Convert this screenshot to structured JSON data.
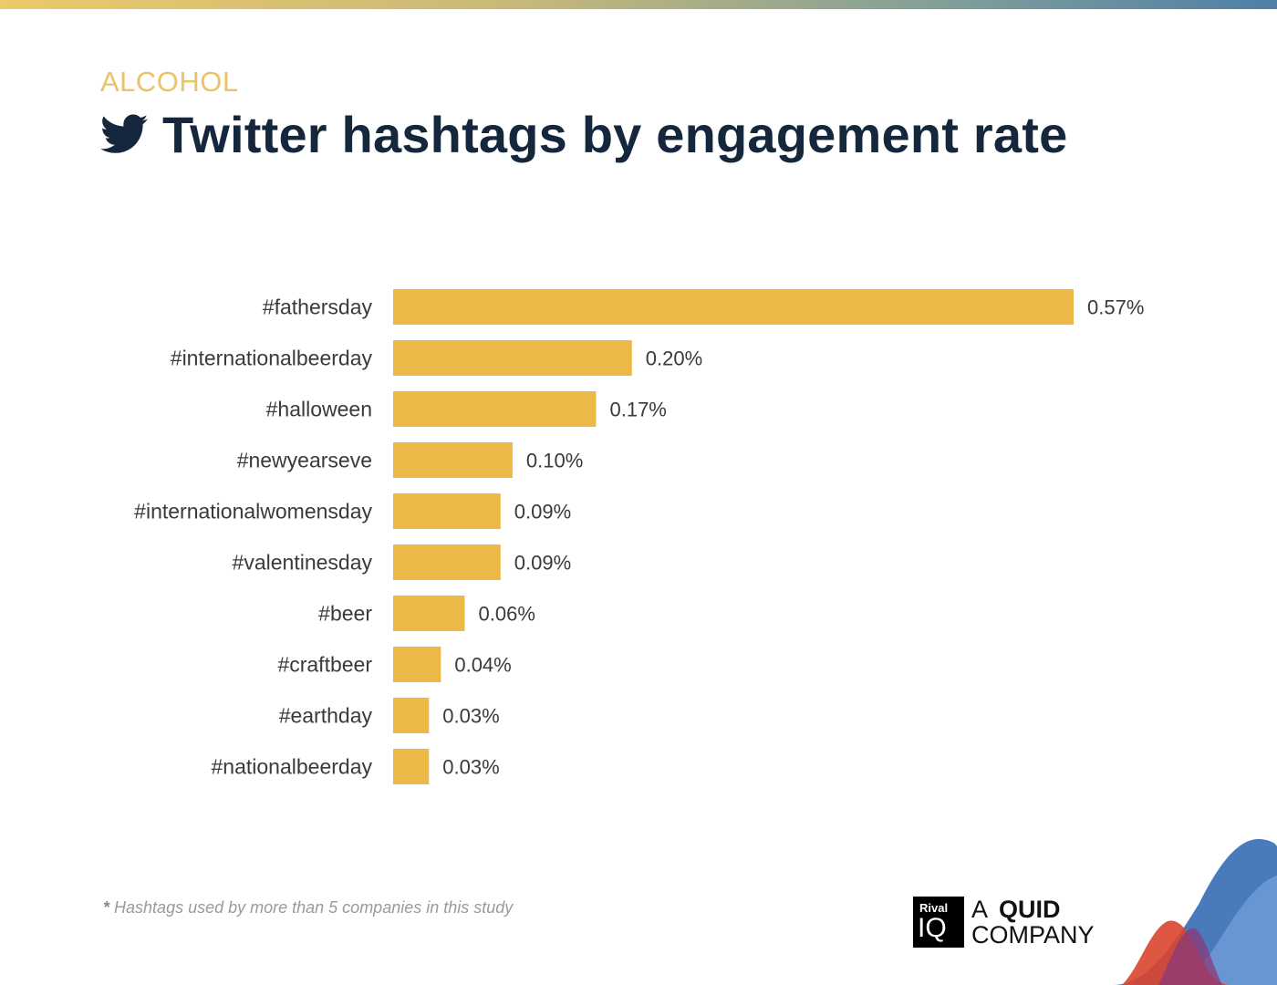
{
  "header": {
    "category": "ALCOHOL",
    "title": "Twitter hashtags by engagement rate",
    "icon": "twitter-bird-icon"
  },
  "footnote": {
    "star": "*",
    "text": "Hashtags used by more than 5 companies in this study"
  },
  "brand": {
    "logo_rival": "Rival",
    "logo_iq": "IQ",
    "tagline_a": "A",
    "tagline_quid": "QUID",
    "tagline_company": "COMPANY"
  },
  "colors": {
    "bar": "#ecb846",
    "label_text": "#3a3a3a",
    "title": "#14273c",
    "category": "#ebc366"
  },
  "chart_data": {
    "type": "bar",
    "orientation": "horizontal",
    "categories": [
      "#fathersday",
      "#internationalbeerday",
      "#halloween",
      "#newyearseve",
      "#internationalwomensday",
      "#valentinesday",
      "#beer",
      "#craftbeer",
      "#earthday",
      "#nationalbeerday"
    ],
    "values": [
      0.57,
      0.2,
      0.17,
      0.1,
      0.09,
      0.09,
      0.06,
      0.04,
      0.03,
      0.03
    ],
    "value_labels": [
      "0.57%",
      "0.20%",
      "0.17%",
      "0.10%",
      "0.09%",
      "0.09%",
      "0.06%",
      "0.04%",
      "0.03%",
      "0.03%"
    ],
    "title": "Twitter hashtags by engagement rate",
    "xlabel": "",
    "ylabel": "",
    "xlim": [
      0,
      0.57
    ],
    "grid": false,
    "legend": "none"
  }
}
